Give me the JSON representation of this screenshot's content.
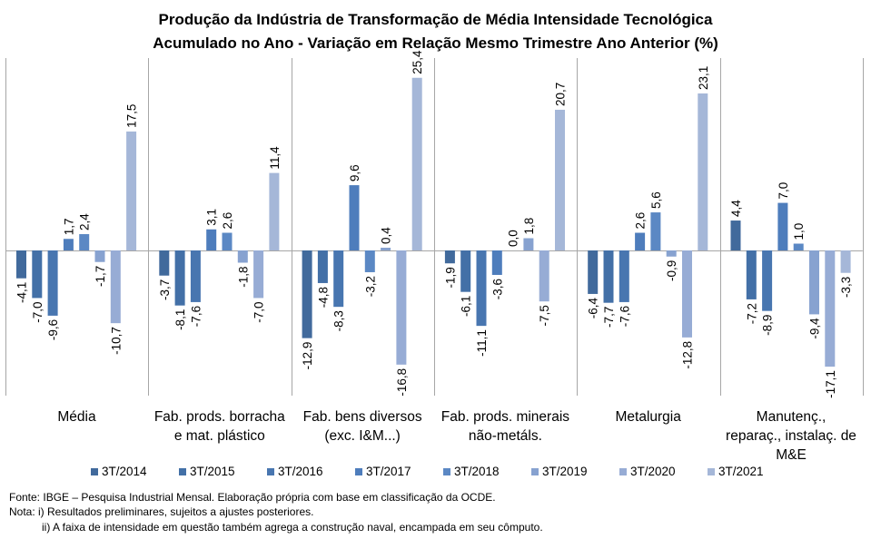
{
  "chart_data": {
    "type": "bar",
    "title": "Produção da Indústria de Transformação de Média Intensidade Tecnológica",
    "subtitle": "Acumulado no Ano - Variação em Relação Mesmo Trimestre Ano Anterior (%)",
    "xlabel": "",
    "ylabel": "",
    "ylim": [
      -22,
      28
    ],
    "grid": false,
    "legend_position": "bottom",
    "categories": [
      "Média",
      "Fab. prods. borracha e mat. plástico",
      "Fab. bens diversos (exc. I&M...)",
      "Fab. prods. minerais não-metáls.",
      "Metalurgia",
      "Manutenç., reparaç., instalaç. de M&E"
    ],
    "category_lines": [
      [
        "Média"
      ],
      [
        "Fab. prods. borracha",
        "e mat. plástico"
      ],
      [
        "Fab. bens diversos",
        "(exc. I&M...)"
      ],
      [
        "Fab. prods. minerais",
        "não-metáls."
      ],
      [
        "Metalurgia"
      ],
      [
        "Manutenç.,",
        "reparaç., instalaç. de",
        "M&E"
      ]
    ],
    "series": [
      {
        "name": "3T/2014",
        "color": "#416a9c",
        "values": [
          -4.1,
          -3.7,
          -12.9,
          -1.9,
          -6.4,
          4.4
        ],
        "labels": [
          "-4,1",
          "-3,7",
          "-12,9",
          "-1,9",
          "-6,4",
          "4,4"
        ]
      },
      {
        "name": "3T/2015",
        "color": "#4370a7",
        "values": [
          -7.0,
          -8.1,
          -4.8,
          -6.1,
          -7.7,
          -7.2
        ],
        "labels": [
          "-7,0",
          "-8,1",
          "-4,8",
          "-6,1",
          "-7,7",
          "-7,2"
        ]
      },
      {
        "name": "3T/2016",
        "color": "#4876b0",
        "values": [
          -9.6,
          -7.6,
          -8.3,
          -11.1,
          -7.6,
          -8.9
        ],
        "labels": [
          "-9,6",
          "-7,6",
          "-8,3",
          "-11,1",
          "-7,6",
          "-8,9"
        ]
      },
      {
        "name": "3T/2017",
        "color": "#4e7dbc",
        "values": [
          1.7,
          3.1,
          9.6,
          -3.6,
          2.6,
          7.0
        ],
        "labels": [
          "1,7",
          "3,1",
          "9,6",
          "-3,6",
          "2,6",
          "7,0"
        ]
      },
      {
        "name": "3T/2018",
        "color": "#5b88c4",
        "values": [
          2.4,
          2.6,
          -3.2,
          0.0,
          5.6,
          1.0
        ],
        "labels": [
          "2,4",
          "2,6",
          "-3,2",
          "0,0",
          "5,6",
          "1,0"
        ]
      },
      {
        "name": "3T/2019",
        "color": "#87a2d0",
        "values": [
          -1.7,
          -1.8,
          0.4,
          1.8,
          -0.9,
          -9.4
        ],
        "labels": [
          "-1,7",
          "-1,8",
          "0,4",
          "1,8",
          "-0,9",
          "-9,4"
        ]
      },
      {
        "name": "3T/2020",
        "color": "#97acd5",
        "values": [
          -10.7,
          -7.0,
          -16.8,
          -7.5,
          -12.8,
          -17.1
        ],
        "labels": [
          "-10,7",
          "-7,0",
          "-16,8",
          "-7,5",
          "-12,8",
          "-17,1"
        ]
      },
      {
        "name": "3T/2021",
        "color": "#a5b7d8",
        "values": [
          17.5,
          11.4,
          25.4,
          20.7,
          23.1,
          -3.3
        ],
        "labels": [
          "17,5",
          "11,4",
          "25,4",
          "20,7",
          "23,1",
          "-3,3"
        ]
      }
    ]
  },
  "notes": {
    "source": "Fonte: IBGE – Pesquisa Industrial Mensal. Elaboração própria com base em classificação da OCDE.",
    "note1": "Nota: i) Resultados preliminares, sujeitos a ajustes posteriores.",
    "note2": "ii) A faixa de intensidade em questão também agrega a construção naval, encampada em seu cômputo."
  }
}
